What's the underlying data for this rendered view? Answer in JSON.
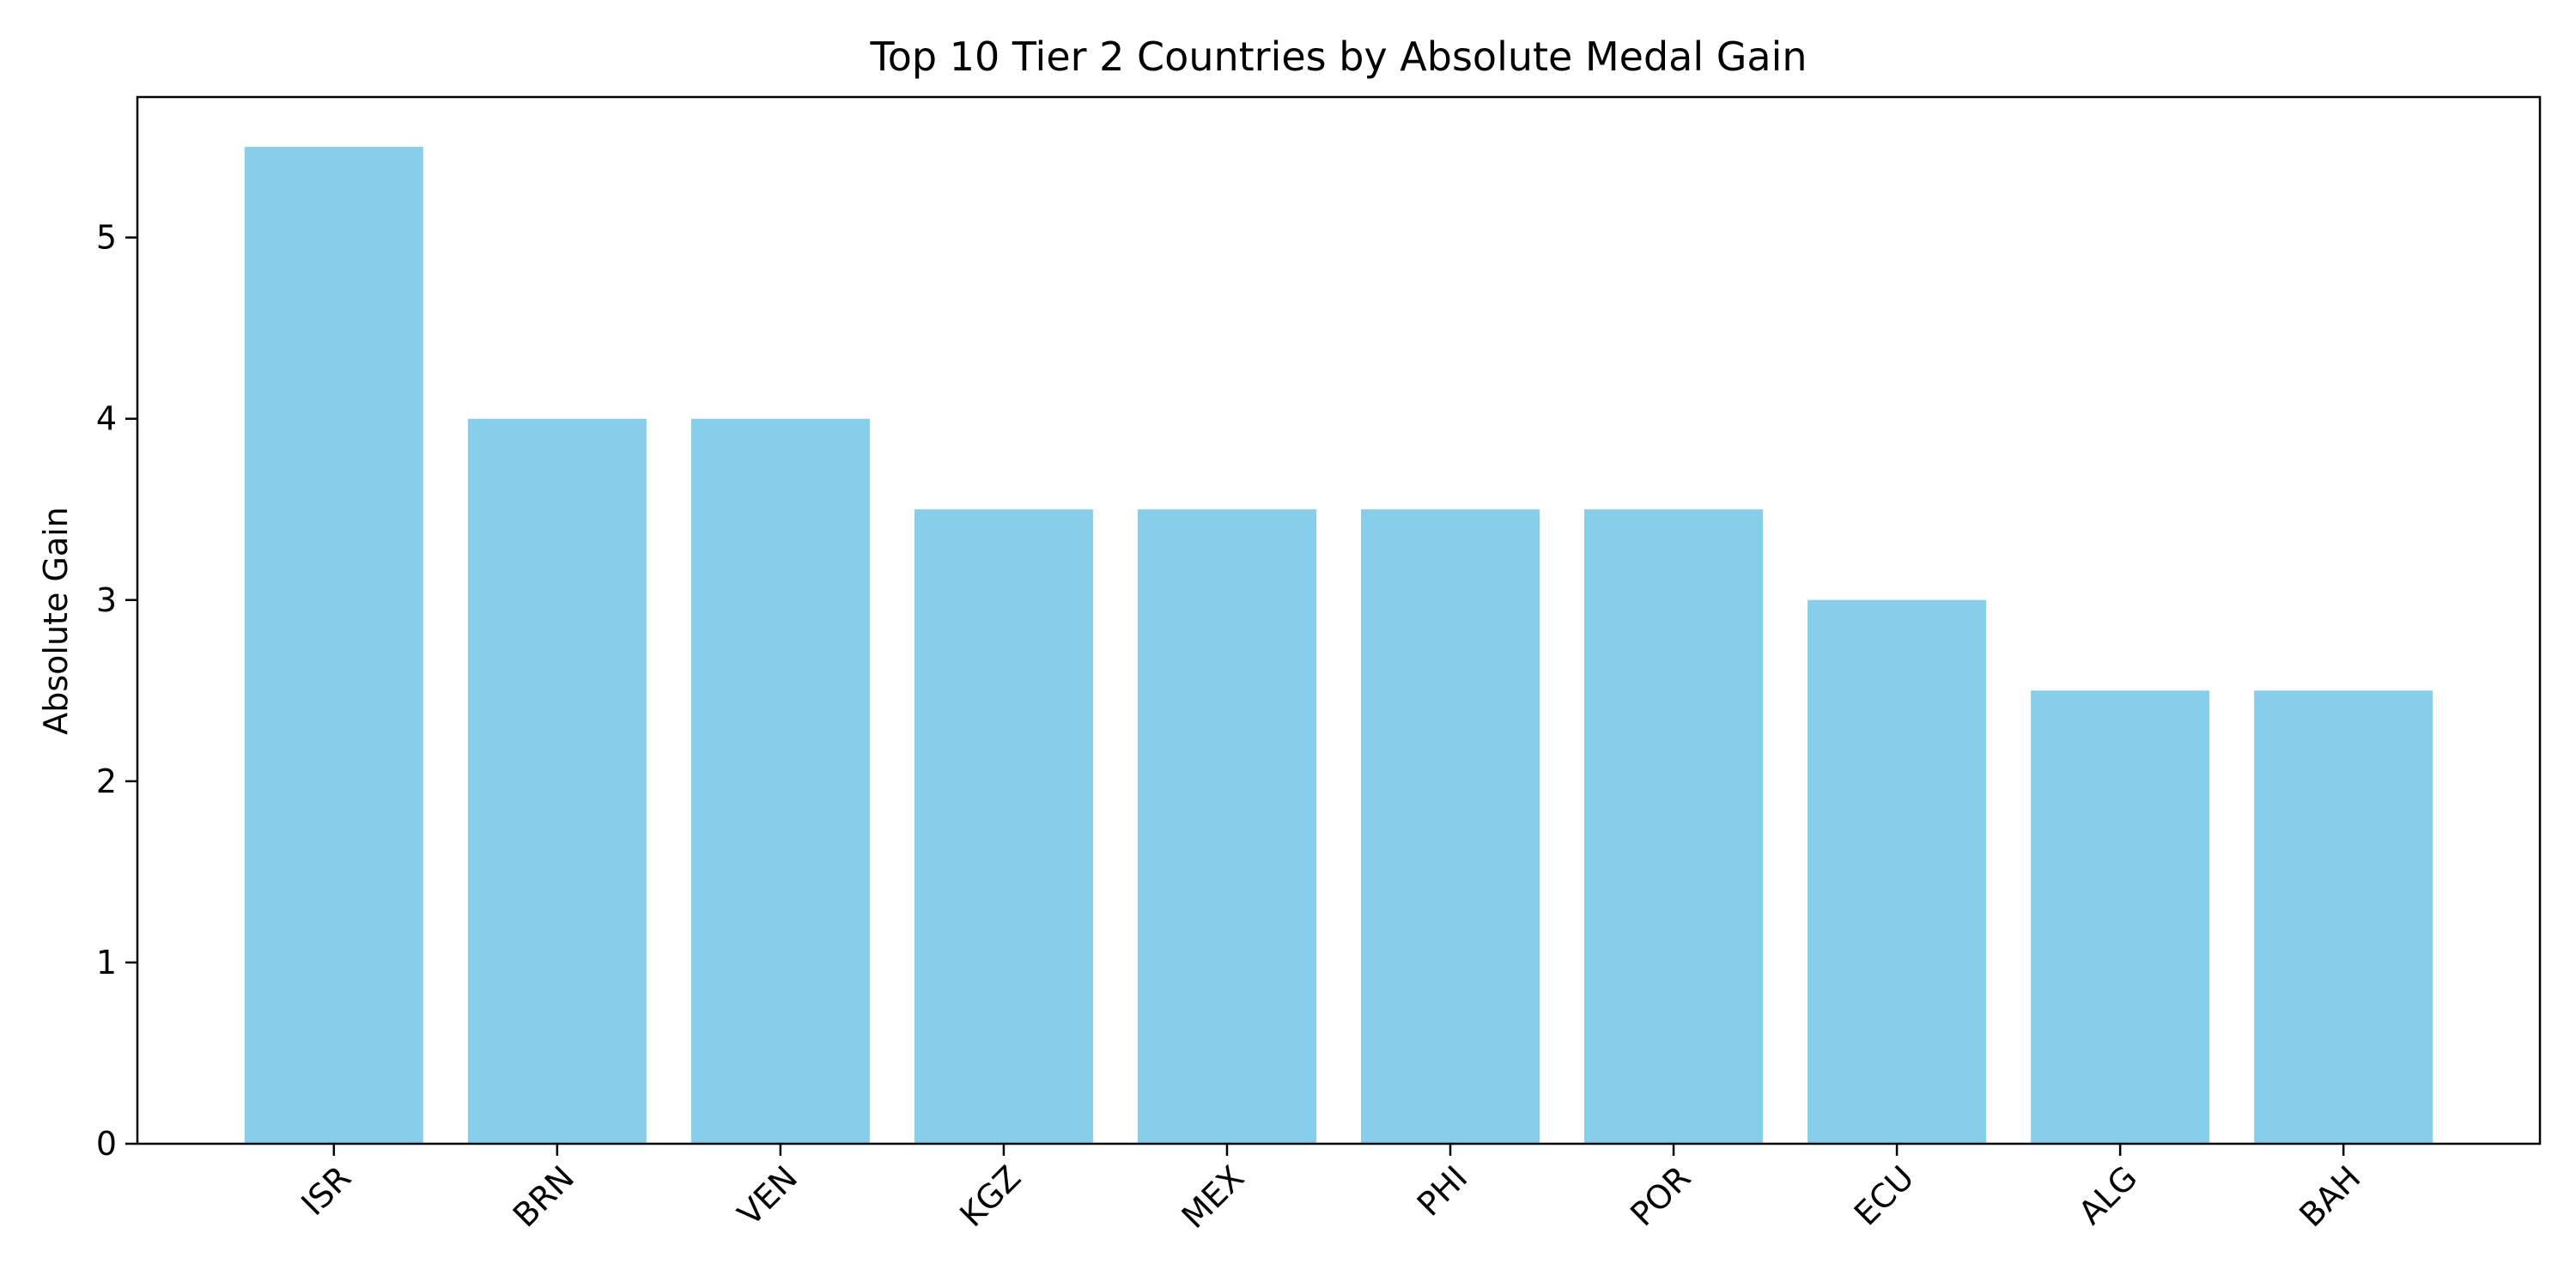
{
  "chart_data": {
    "type": "bar",
    "title": "Top 10 Tier 2 Countries by Absolute Medal Gain",
    "xlabel": "",
    "ylabel": "Absolute Gain",
    "categories": [
      "ISR",
      "BRN",
      "VEN",
      "KGZ",
      "MEX",
      "PHI",
      "POR",
      "ECU",
      "ALG",
      "BAH"
    ],
    "values": [
      5.5,
      4.0,
      4.0,
      3.5,
      3.5,
      3.5,
      3.5,
      3.0,
      2.5,
      2.5
    ],
    "ylim": [
      0,
      5.775
    ],
    "yticks": [
      0,
      1,
      2,
      3,
      4,
      5
    ],
    "x_tick_rotation": 45,
    "grid": false,
    "legend": "none",
    "bar_color": "#87CEEB"
  }
}
